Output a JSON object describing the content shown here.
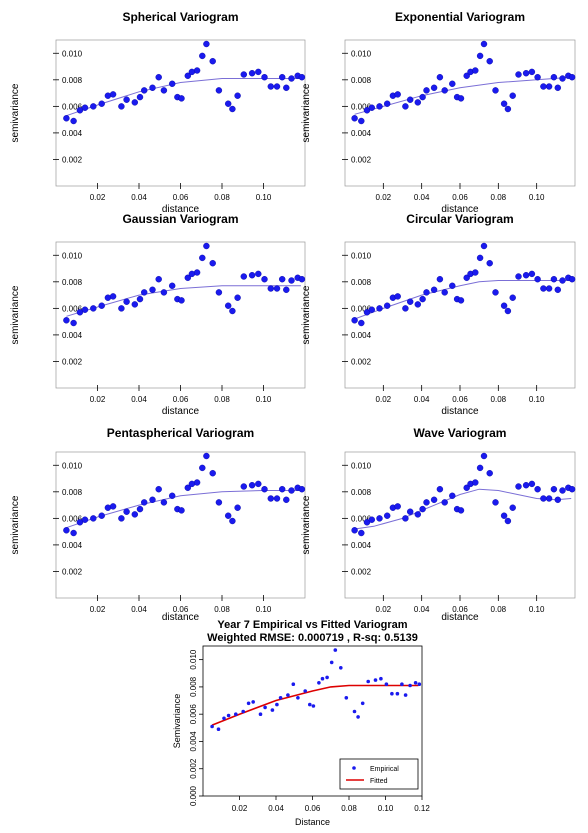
{
  "colors": {
    "points": "#1a1aee",
    "point_edge": "#0000a0",
    "model_line": "#7b6fd6",
    "fitted_line": "#dd0000",
    "empirical_points": "#1a1aee"
  },
  "empirical": {
    "x": [
      0.005,
      0.0085,
      0.0115,
      0.014,
      0.018,
      0.022,
      0.025,
      0.0275,
      0.0315,
      0.034,
      0.038,
      0.0405,
      0.0425,
      0.0465,
      0.0495,
      0.052,
      0.056,
      0.0585,
      0.0605,
      0.0635,
      0.0655,
      0.068,
      0.0705,
      0.0725,
      0.0755,
      0.0785,
      0.083,
      0.085,
      0.0875,
      0.0905,
      0.0945,
      0.0975,
      0.1005,
      0.1035,
      0.1065,
      0.109,
      0.111,
      0.1135,
      0.1165,
      0.1185
    ],
    "y": [
      0.0051,
      0.0049,
      0.0057,
      0.0059,
      0.006,
      0.0062,
      0.0068,
      0.0069,
      0.006,
      0.0065,
      0.0063,
      0.0067,
      0.0072,
      0.0074,
      0.0082,
      0.0072,
      0.0077,
      0.0067,
      0.0066,
      0.0083,
      0.0086,
      0.0087,
      0.0098,
      0.0107,
      0.0094,
      0.0072,
      0.0062,
      0.0058,
      0.0068,
      0.0084,
      0.0085,
      0.0086,
      0.0082,
      0.0075,
      0.0075,
      0.0082,
      0.0074,
      0.0081,
      0.0083,
      0.0082
    ]
  },
  "chart_data": [
    {
      "type": "scatter",
      "title": "Spherical Variogram",
      "xlabel": "distance",
      "ylabel": "semivariance",
      "xlim": [
        0,
        0.12
      ],
      "ylim": [
        0.0,
        0.011
      ],
      "xticks": [
        0.02,
        0.04,
        0.06,
        0.08,
        0.1
      ],
      "xtick_labels": [
        "0.02",
        "0.04",
        "0.06",
        "0.08",
        "0.10"
      ],
      "yticks": [
        0.002,
        0.004,
        0.006,
        0.008,
        0.01
      ],
      "ytick_labels": [
        "0.002",
        "0.004",
        "0.006",
        "0.008",
        "0.010"
      ],
      "series": [
        {
          "x": "empirical.x",
          "y": "empirical.y"
        }
      ],
      "fitted_model": {
        "x": [
          0.005,
          0.02,
          0.04,
          0.06,
          0.08,
          0.1,
          0.118
        ],
        "y": [
          0.0053,
          0.0061,
          0.0071,
          0.0078,
          0.0081,
          0.0081,
          0.0081
        ]
      }
    },
    {
      "type": "scatter",
      "title": "Exponential Variogram",
      "xlabel": "distance",
      "ylabel": "semivariance",
      "xlim": [
        0,
        0.12
      ],
      "ylim": [
        0.0,
        0.011
      ],
      "xticks": [
        0.02,
        0.04,
        0.06,
        0.08,
        0.1
      ],
      "xtick_labels": [
        "0.02",
        "0.04",
        "0.06",
        "0.08",
        "0.10"
      ],
      "yticks": [
        0.002,
        0.004,
        0.006,
        0.008,
        0.01
      ],
      "ytick_labels": [
        "0.002",
        "0.004",
        "0.006",
        "0.008",
        "0.010"
      ],
      "fitted_model": {
        "x": [
          0.005,
          0.02,
          0.04,
          0.06,
          0.08,
          0.1,
          0.118
        ],
        "y": [
          0.0054,
          0.006,
          0.0068,
          0.0074,
          0.0078,
          0.008,
          0.0082
        ]
      }
    },
    {
      "type": "scatter",
      "title": "Gaussian Variogram",
      "xlabel": "distance",
      "ylabel": "semivariance",
      "xlim": [
        0,
        0.12
      ],
      "ylim": [
        0.0,
        0.011
      ],
      "xticks": [
        0.02,
        0.04,
        0.06,
        0.08,
        0.1
      ],
      "xtick_labels": [
        "0.02",
        "0.04",
        "0.06",
        "0.08",
        "0.10"
      ],
      "yticks": [
        0.002,
        0.004,
        0.006,
        0.008,
        0.01
      ],
      "ytick_labels": [
        "0.002",
        "0.004",
        "0.006",
        "0.008",
        "0.010"
      ],
      "fitted_model": {
        "x": [
          0.005,
          0.02,
          0.04,
          0.06,
          0.08,
          0.1,
          0.118
        ],
        "y": [
          0.0054,
          0.0061,
          0.007,
          0.0075,
          0.0077,
          0.0077,
          0.0077
        ]
      }
    },
    {
      "type": "scatter",
      "title": "Circular Variogram",
      "xlabel": "distance",
      "ylabel": "semivariance",
      "xlim": [
        0,
        0.12
      ],
      "ylim": [
        0.0,
        0.011
      ],
      "xticks": [
        0.02,
        0.04,
        0.06,
        0.08,
        0.1
      ],
      "xtick_labels": [
        "0.02",
        "0.04",
        "0.06",
        "0.08",
        "0.10"
      ],
      "yticks": [
        0.002,
        0.004,
        0.006,
        0.008,
        0.01
      ],
      "ytick_labels": [
        "0.002",
        "0.004",
        "0.006",
        "0.008",
        "0.010"
      ],
      "fitted_model": {
        "x": [
          0.005,
          0.02,
          0.04,
          0.06,
          0.07,
          0.08,
          0.1,
          0.118
        ],
        "y": [
          0.0052,
          0.006,
          0.007,
          0.0077,
          0.008,
          0.0081,
          0.0081,
          0.0081
        ]
      }
    },
    {
      "type": "scatter",
      "title": "Pentaspherical Variogram",
      "xlabel": "distance",
      "ylabel": "semivariance",
      "xlim": [
        0,
        0.12
      ],
      "ylim": [
        0.0,
        0.011
      ],
      "xticks": [
        0.02,
        0.04,
        0.06,
        0.08,
        0.1
      ],
      "xtick_labels": [
        "0.02",
        "0.04",
        "0.06",
        "0.08",
        "0.10"
      ],
      "yticks": [
        0.002,
        0.004,
        0.006,
        0.008,
        0.01
      ],
      "ytick_labels": [
        "0.002",
        "0.004",
        "0.006",
        "0.008",
        "0.010"
      ],
      "fitted_model": {
        "x": [
          0.005,
          0.02,
          0.04,
          0.06,
          0.08,
          0.1,
          0.118
        ],
        "y": [
          0.0053,
          0.0061,
          0.007,
          0.0077,
          0.008,
          0.0081,
          0.0081
        ]
      }
    },
    {
      "type": "scatter",
      "title": "Wave Variogram",
      "xlabel": "distance",
      "ylabel": "semivariance",
      "xlim": [
        0,
        0.12
      ],
      "ylim": [
        0.0,
        0.011
      ],
      "xticks": [
        0.02,
        0.04,
        0.06,
        0.08,
        0.1
      ],
      "xtick_labels": [
        "0.02",
        "0.04",
        "0.06",
        "0.08",
        "0.10"
      ],
      "yticks": [
        0.002,
        0.004,
        0.006,
        0.008,
        0.01
      ],
      "ytick_labels": [
        "0.002",
        "0.004",
        "0.006",
        "0.008",
        "0.010"
      ],
      "fitted_model": {
        "x": [
          0.005,
          0.015,
          0.03,
          0.045,
          0.06,
          0.07,
          0.08,
          0.09,
          0.1,
          0.11,
          0.118
        ],
        "y": [
          0.0052,
          0.0054,
          0.006,
          0.0069,
          0.0078,
          0.0082,
          0.0081,
          0.0078,
          0.0075,
          0.0074,
          0.0075
        ]
      }
    },
    {
      "type": "scatter",
      "title": "Year 7 Empirical vs Fitted Variogram",
      "subtitle": "Weighted RMSE: 0.000719 , R-sq: 0.5139",
      "xlabel": "Distance",
      "ylabel": "Semivariance",
      "xlim": [
        0,
        0.12
      ],
      "ylim": [
        0.0,
        0.011
      ],
      "xticks": [
        0.02,
        0.04,
        0.06,
        0.08,
        0.1,
        0.12
      ],
      "xtick_labels": [
        "0.02",
        "0.04",
        "0.06",
        "0.08",
        "0.10",
        "0.12"
      ],
      "yticks": [
        0.0,
        0.002,
        0.004,
        0.006,
        0.008,
        0.01
      ],
      "ytick_labels": [
        "0.000",
        "0.002",
        "0.004",
        "0.006",
        "0.008",
        "0.010"
      ],
      "legend": {
        "placement": "bottom-right",
        "entries": [
          "Empirical",
          "Fitted"
        ]
      },
      "fitted_model": {
        "x": [
          0.005,
          0.02,
          0.04,
          0.06,
          0.07,
          0.08,
          0.1,
          0.118
        ],
        "y": [
          0.0052,
          0.006,
          0.007,
          0.0077,
          0.008,
          0.0081,
          0.0081,
          0.0081
        ]
      }
    }
  ]
}
